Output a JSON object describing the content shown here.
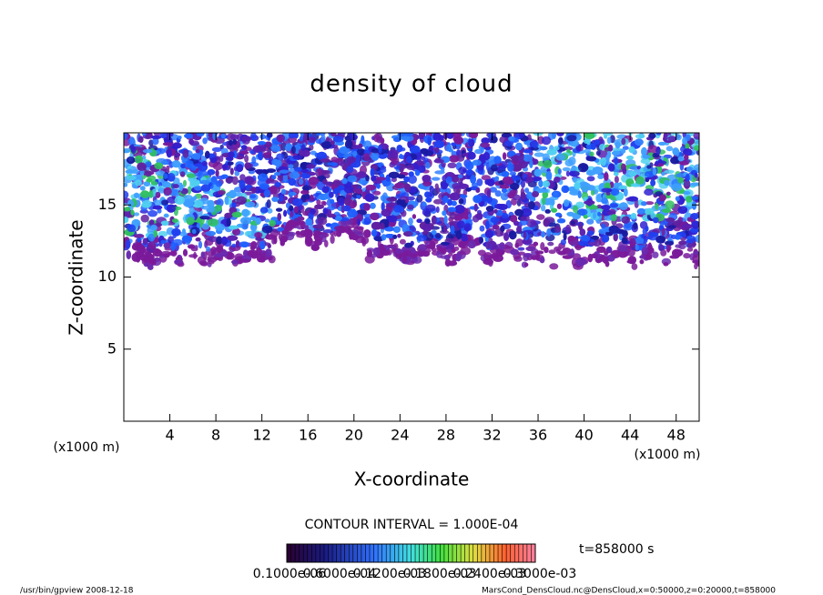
{
  "chart_data": {
    "type": "contour",
    "title": "density of cloud",
    "x_label": "X-coordinate",
    "y_label": "Z-coordinate",
    "x_unit": "(x1000 m)",
    "y_unit": "(x1000 m)",
    "xlim": [
      0,
      50
    ],
    "xticks": [
      4,
      8,
      12,
      16,
      20,
      24,
      28,
      32,
      36,
      40,
      44,
      48
    ],
    "ylim": [
      0,
      20
    ],
    "yticks": [
      5,
      10,
      15
    ],
    "contour_interval": "CONTOUR INTERVAL = 1.000E-04",
    "time": "t=858000 s",
    "colorbar_labels": [
      "0.1000e-06",
      "0.6000e-04",
      "0.1200e-03",
      "0.1800e-03",
      "0.2400e-03",
      "0.3000e-03"
    ],
    "footer_left": "/usr/bin/gpview   2008-12-18",
    "footer_right": "MarsCond_DensCloud.nc@DensCloud,x=0:50000,z=0:20000,t=858000"
  }
}
